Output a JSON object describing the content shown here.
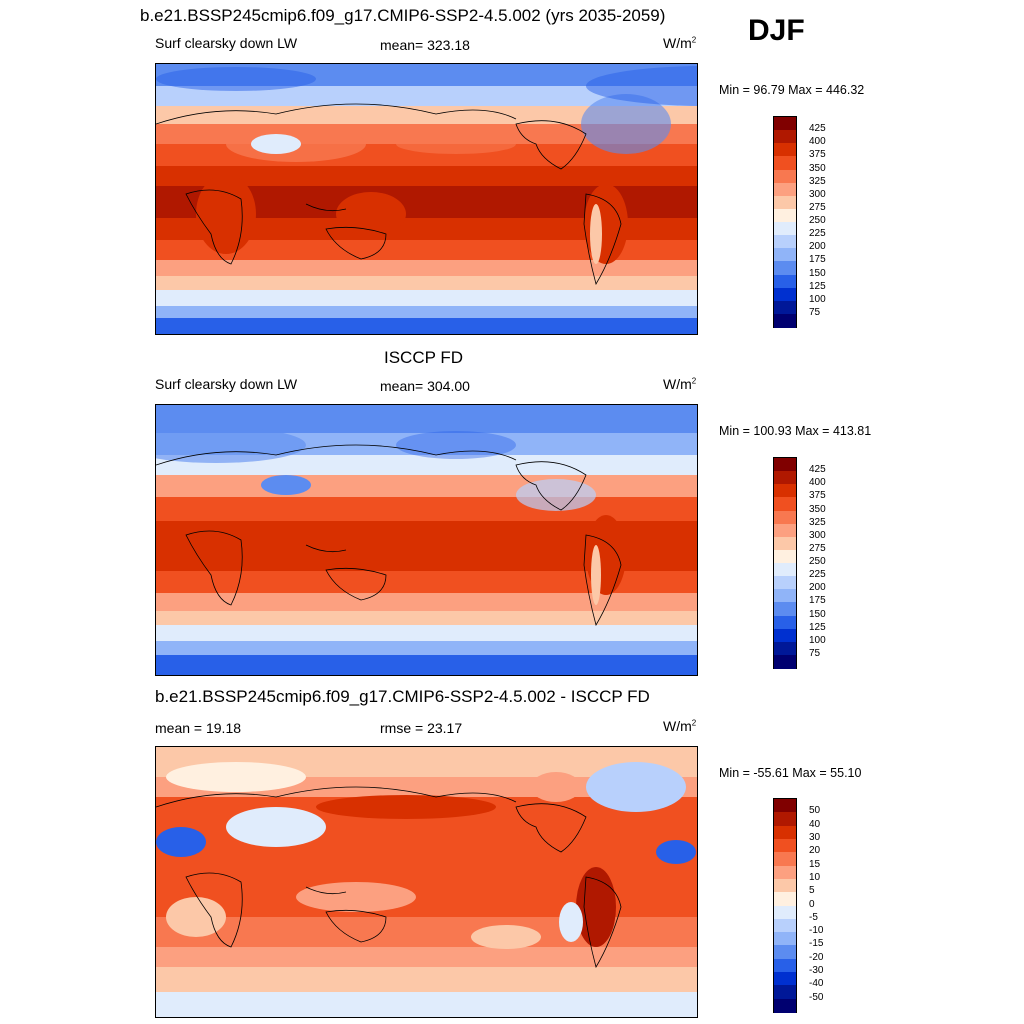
{
  "season": "DJF",
  "panels": [
    {
      "title": "b.e21.BSSP245cmip6.f09_g17.CMIP6-SSP2-4.5.002 (yrs 2035-2059)",
      "left_label": "Surf clearsky down LW",
      "center_label": "mean= 323.18",
      "units": "W/m",
      "units_sup": "2",
      "minmax": "Min =  96.79 Max = 446.32",
      "colorbar": {
        "labels": [
          "425",
          "400",
          "375",
          "350",
          "325",
          "300",
          "275",
          "250",
          "225",
          "200",
          "175",
          "150",
          "125",
          "100",
          "75"
        ],
        "colors": [
          "#800000",
          "#b01800",
          "#d83000",
          "#f05020",
          "#f87850",
          "#fca080",
          "#fcc8a8",
          "#fff0e0",
          "#e0ecfc",
          "#b8d0fc",
          "#90b4f8",
          "#5c8cf0",
          "#2860e8",
          "#0030d0",
          "#001898",
          "#000070"
        ]
      }
    },
    {
      "title": "ISCCP FD",
      "left_label": "Surf clearsky down LW",
      "center_label": "mean= 304.00",
      "units": "W/m",
      "units_sup": "2",
      "minmax": "Min = 100.93 Max = 413.81",
      "colorbar": {
        "labels": [
          "425",
          "400",
          "375",
          "350",
          "325",
          "300",
          "275",
          "250",
          "225",
          "200",
          "175",
          "150",
          "125",
          "100",
          "75"
        ],
        "colors": [
          "#800000",
          "#b01800",
          "#d83000",
          "#f05020",
          "#f87850",
          "#fca080",
          "#fcc8a8",
          "#fff0e0",
          "#e0ecfc",
          "#b8d0fc",
          "#90b4f8",
          "#5c8cf0",
          "#2860e8",
          "#0030d0",
          "#001898",
          "#000070"
        ]
      }
    },
    {
      "title": "b.e21.BSSP245cmip6.f09_g17.CMIP6-SSP2-4.5.002 - ISCCP FD",
      "left_label": "mean =  19.18",
      "center_label": "rmse =  23.17",
      "units": "W/m",
      "units_sup": "2",
      "minmax": "Min = -55.61 Max =  55.10",
      "colorbar": {
        "labels": [
          "50",
          "40",
          "30",
          "20",
          "15",
          "10",
          "5",
          "0",
          "-5",
          "-10",
          "-15",
          "-20",
          "-30",
          "-40",
          "-50"
        ],
        "colors": [
          "#800000",
          "#b01800",
          "#d83000",
          "#f05020",
          "#f87850",
          "#fca080",
          "#fcc8a8",
          "#fff0e0",
          "#e0ecfc",
          "#b8d0fc",
          "#90b4f8",
          "#5c8cf0",
          "#2860e8",
          "#0030d0",
          "#001898",
          "#000070"
        ]
      }
    }
  ]
}
